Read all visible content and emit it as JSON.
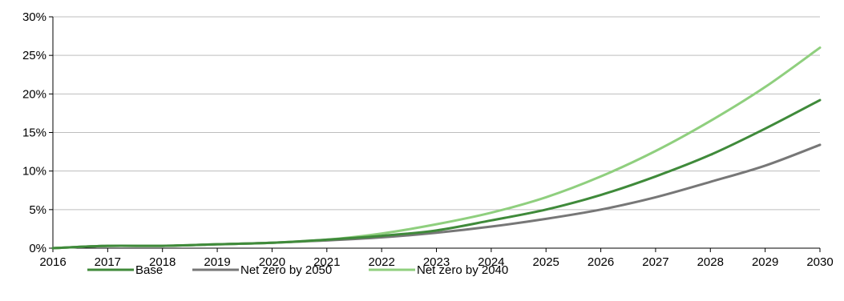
{
  "chart_data": {
    "type": "line",
    "title": "",
    "xlabel": "",
    "ylabel": "",
    "x": [
      "2016",
      "2017",
      "2018",
      "2019",
      "2020",
      "2021",
      "2022",
      "2023",
      "2024",
      "2025",
      "2026",
      "2027",
      "2028",
      "2029",
      "2030"
    ],
    "ylim": [
      0,
      30
    ],
    "yticks": [
      "0%",
      "5%",
      "10%",
      "15%",
      "20%",
      "25%",
      "30%"
    ],
    "grid": "horizontal",
    "legend_position": "bottom",
    "series": [
      {
        "name": "Base",
        "color": "#3f8a3a",
        "values": [
          0,
          0.3,
          0.3,
          0.5,
          0.7,
          1.1,
          1.6,
          2.3,
          3.6,
          5.0,
          6.9,
          9.3,
          12.1,
          15.5,
          19.2
        ]
      },
      {
        "name": "Net zero by 2050",
        "color": "#777777",
        "values": [
          0,
          0.3,
          0.3,
          0.5,
          0.7,
          1.0,
          1.4,
          2.0,
          2.8,
          3.8,
          5.0,
          6.6,
          8.6,
          10.7,
          13.4
        ]
      },
      {
        "name": "Net zero by 2040",
        "color": "#8fcf7e",
        "values": [
          0,
          0.3,
          0.3,
          0.5,
          0.7,
          1.1,
          1.9,
          3.1,
          4.6,
          6.6,
          9.3,
          12.6,
          16.5,
          20.9,
          26.0
        ]
      }
    ]
  }
}
